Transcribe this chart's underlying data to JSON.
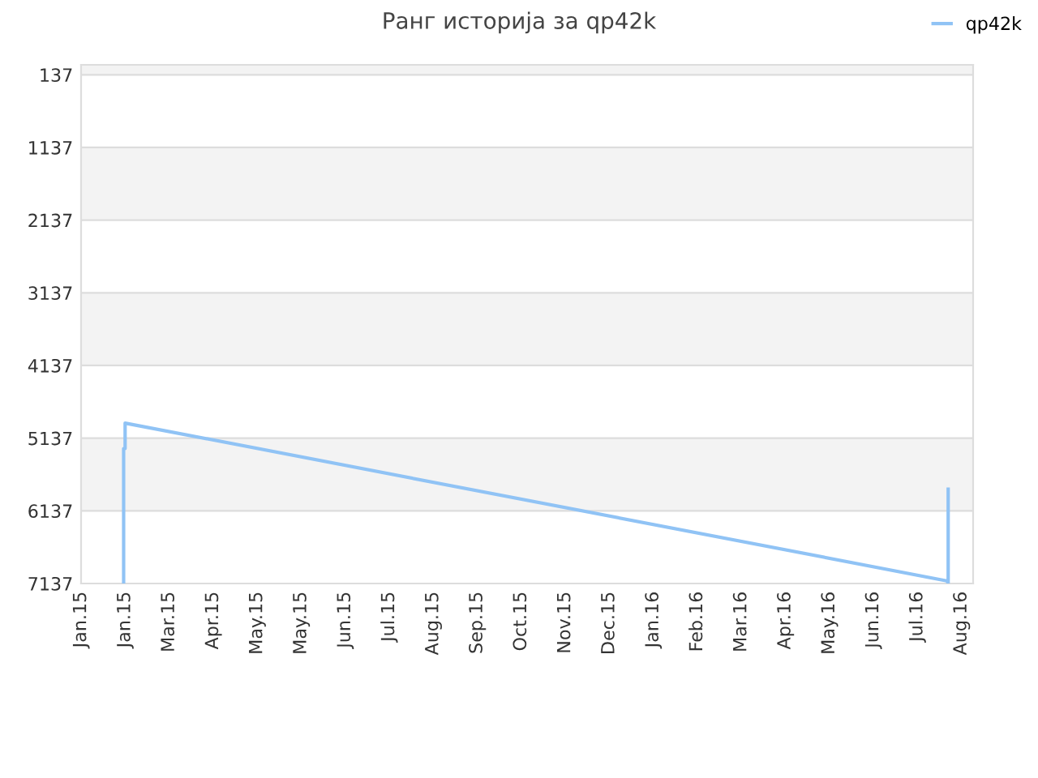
{
  "chart_data": {
    "type": "line",
    "title": "Ранг историја за qp42k",
    "series": [
      {
        "name": "qp42k",
        "color": "#90c3f5",
        "x": [
          "2015-01-30",
          "2015-01-30",
          "2015-01-31",
          "2015-01-31",
          "2016-08-13",
          "2016-08-14",
          "2016-08-14"
        ],
        "values": [
          7130,
          5280,
          5280,
          4930,
          7100,
          7130,
          5840
        ]
      }
    ],
    "ylim": [
      7137,
      0
    ],
    "yticks": [
      137,
      1137,
      2137,
      3137,
      4137,
      5137,
      6137,
      7137
    ],
    "xlim": [
      "2015-01-01",
      "2016-08-31"
    ],
    "xticks": [
      {
        "value": "2015-01-01",
        "label": "Jan.15"
      },
      {
        "value": "2015-01-31",
        "label": "Jan.15"
      },
      {
        "value": "2015-03-02",
        "label": "Mar.15"
      },
      {
        "value": "2015-04-01",
        "label": "Apr.15"
      },
      {
        "value": "2015-05-01",
        "label": "May.15"
      },
      {
        "value": "2015-05-31",
        "label": "May.15"
      },
      {
        "value": "2015-06-30",
        "label": "Jun.15"
      },
      {
        "value": "2015-07-30",
        "label": "Jul.15"
      },
      {
        "value": "2015-08-29",
        "label": "Aug.15"
      },
      {
        "value": "2015-09-28",
        "label": "Sep.15"
      },
      {
        "value": "2015-10-28",
        "label": "Oct.15"
      },
      {
        "value": "2015-11-27",
        "label": "Nov.15"
      },
      {
        "value": "2015-12-27",
        "label": "Dec.15"
      },
      {
        "value": "2016-01-26",
        "label": "Jan.16"
      },
      {
        "value": "2016-02-25",
        "label": "Feb.16"
      },
      {
        "value": "2016-03-26",
        "label": "Mar.16"
      },
      {
        "value": "2016-04-25",
        "label": "Apr.16"
      },
      {
        "value": "2016-05-25",
        "label": "May.16"
      },
      {
        "value": "2016-06-24",
        "label": "Jun.16"
      },
      {
        "value": "2016-07-24",
        "label": "Jul.16"
      },
      {
        "value": "2016-08-23",
        "label": "Aug.16"
      }
    ],
    "grid": "y",
    "legend": "top right",
    "marker": "none",
    "line_style": "solid"
  }
}
